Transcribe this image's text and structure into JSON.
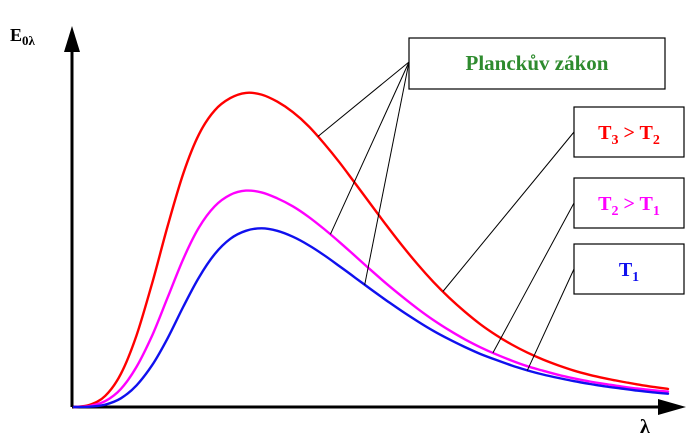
{
  "chart_data": {
    "type": "line",
    "title": "",
    "ylabel": "E",
    "ylabel_sub": "0λ",
    "xlabel": "λ",
    "grid": false,
    "legend": "right, boxed labels with leader lines",
    "annotation": {
      "label": "Planckův zákon",
      "color": "#2e8b2e"
    },
    "x": [
      0.0,
      0.25,
      0.5,
      0.75,
      1.0,
      1.25,
      1.5,
      1.75,
      2.0,
      2.25,
      2.5,
      2.75,
      3.0,
      3.25,
      3.5,
      3.75,
      4.0,
      4.25,
      4.5,
      4.75,
      5.0,
      5.25,
      5.5,
      5.75,
      6.0,
      6.25,
      6.5,
      6.75,
      7.0,
      7.25,
      7.5,
      7.75,
      8.0,
      8.25,
      8.5,
      8.75,
      9.0,
      9.25,
      9.5
    ],
    "xlim": [
      0,
      9.5
    ],
    "ylim": [
      0,
      10
    ],
    "series": [
      {
        "name_main": "T",
        "name_sub": "3",
        "name_rel": " > ",
        "name_main2": "T",
        "name_sub2": "2",
        "color": "#ff0000",
        "values": [
          0.0,
          0.06,
          0.32,
          0.95,
          2.05,
          3.55,
          5.2,
          6.7,
          7.82,
          8.5,
          8.85,
          9.0,
          8.95,
          8.75,
          8.45,
          8.05,
          7.55,
          7.0,
          6.4,
          5.8,
          5.2,
          4.62,
          4.08,
          3.58,
          3.13,
          2.73,
          2.37,
          2.06,
          1.79,
          1.56,
          1.36,
          1.19,
          1.04,
          0.92,
          0.82,
          0.73,
          0.65,
          0.58,
          0.52
        ]
      },
      {
        "name_main": "T",
        "name_sub": "2",
        "name_rel": " > ",
        "name_main2": "T",
        "name_sub2": "1",
        "color": "#ff00ff",
        "values": [
          0.0,
          0.03,
          0.17,
          0.52,
          1.15,
          2.05,
          3.15,
          4.25,
          5.15,
          5.75,
          6.08,
          6.2,
          6.15,
          5.98,
          5.75,
          5.45,
          5.1,
          4.72,
          4.32,
          3.92,
          3.53,
          3.16,
          2.81,
          2.49,
          2.2,
          1.94,
          1.71,
          1.51,
          1.33,
          1.17,
          1.04,
          0.92,
          0.82,
          0.73,
          0.66,
          0.59,
          0.53,
          0.48,
          0.44
        ]
      },
      {
        "name_main": "T",
        "name_sub": "1",
        "name_rel": "",
        "name_main2": "",
        "name_sub2": "",
        "color": "#1010ee",
        "values": [
          0.0,
          0.01,
          0.07,
          0.25,
          0.62,
          1.2,
          1.98,
          2.88,
          3.72,
          4.38,
          4.82,
          5.05,
          5.12,
          5.05,
          4.88,
          4.64,
          4.35,
          4.03,
          3.7,
          3.37,
          3.05,
          2.74,
          2.45,
          2.18,
          1.94,
          1.72,
          1.52,
          1.35,
          1.19,
          1.05,
          0.93,
          0.83,
          0.74,
          0.66,
          0.59,
          0.53,
          0.47,
          0.42,
          0.38
        ]
      }
    ]
  }
}
